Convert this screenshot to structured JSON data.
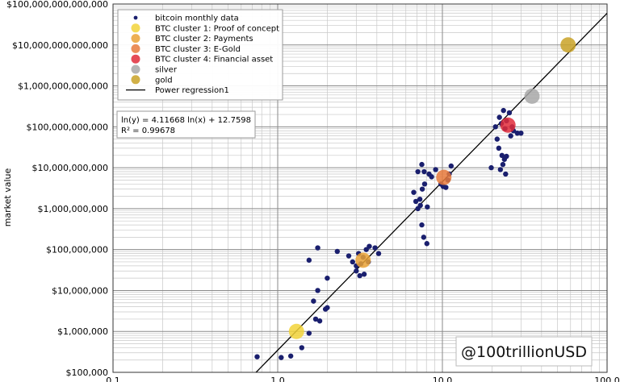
{
  "chart_data": {
    "type": "scatter",
    "title": "",
    "xlabel": "",
    "ylabel": "market value",
    "xscale": "log",
    "yscale": "log",
    "xlim": [
      0.1,
      100.0
    ],
    "ylim": [
      100000,
      100000000000000
    ],
    "grid": true,
    "x_ticks": [
      {
        "value": 0.1,
        "label": "0.1"
      },
      {
        "value": 1.0,
        "label": "1.0"
      },
      {
        "value": 10.0,
        "label": "10.0"
      },
      {
        "value": 100.0,
        "label": "100.0"
      }
    ],
    "y_ticks": [
      {
        "value": 100000,
        "label": "$100,000"
      },
      {
        "value": 1000000,
        "label": "$1,000,000"
      },
      {
        "value": 10000000,
        "label": "$10,000,000"
      },
      {
        "value": 100000000,
        "label": "$100,000,000"
      },
      {
        "value": 1000000000,
        "label": "$1,000,000,000"
      },
      {
        "value": 10000000000,
        "label": "$10,000,000,000"
      },
      {
        "value": 100000000000,
        "label": "$100,000,000,000"
      },
      {
        "value": 1000000000000,
        "label": "$1,000,000,000,000"
      },
      {
        "value": 10000000000000,
        "label": "$10,000,000,000,000"
      },
      {
        "value": 100000000000000,
        "label": "$100,000,000,000,000"
      }
    ],
    "legend_position": "top-left",
    "legend": [
      {
        "label": "bitcoin monthly data",
        "marker": "dot",
        "color": "#1a1f6e"
      },
      {
        "label": "BTC cluster 1: Proof of concept",
        "marker": "circle",
        "color": "#f2d33a"
      },
      {
        "label": "BTC cluster 2: Payments",
        "marker": "circle",
        "color": "#eaa236"
      },
      {
        "label": "BTC cluster 3: E-Gold",
        "marker": "circle",
        "color": "#e87a3c"
      },
      {
        "label": "BTC cluster 4: Financial asset",
        "marker": "circle",
        "color": "#e02b3a"
      },
      {
        "label": "silver",
        "marker": "circle",
        "color": "#a8a8a8"
      },
      {
        "label": "gold",
        "marker": "circle",
        "color": "#c9a227"
      },
      {
        "label": "Power regression1",
        "marker": "line",
        "color": "#000000"
      }
    ],
    "annotation": {
      "line1": "ln(y) = 4.11668 ln(x) + 12.7598",
      "line2": "R² = 0.99678"
    },
    "regression": {
      "slope": 4.11668,
      "intercept": 12.7598
    },
    "series": [
      {
        "name": "bitcoin monthly data",
        "color": "#1a1f6e",
        "points": [
          [
            0.75,
            240000
          ],
          [
            1.05,
            230000
          ],
          [
            1.2,
            250000
          ],
          [
            1.4,
            400000
          ],
          [
            1.55,
            900000
          ],
          [
            1.7,
            2000000
          ],
          [
            1.8,
            1800000
          ],
          [
            1.95,
            3500000
          ],
          [
            2.0,
            3800000
          ],
          [
            1.65,
            5500000
          ],
          [
            1.75,
            10000000
          ],
          [
            2.0,
            20000000
          ],
          [
            1.55,
            55000000
          ],
          [
            1.75,
            110000000
          ],
          [
            2.3,
            90000000
          ],
          [
            2.7,
            70000000
          ],
          [
            2.85,
            50000000
          ],
          [
            3.0,
            40000000
          ],
          [
            3.0,
            30000000
          ],
          [
            3.15,
            23000000
          ],
          [
            3.35,
            25000000
          ],
          [
            3.1,
            80000000
          ],
          [
            3.45,
            100000000
          ],
          [
            3.6,
            120000000
          ],
          [
            3.9,
            110000000
          ],
          [
            4.1,
            80000000
          ],
          [
            3.3,
            65000000
          ],
          [
            3.55,
            50000000
          ],
          [
            3.2,
            45000000
          ],
          [
            6.7,
            2500000000
          ],
          [
            6.9,
            1500000000
          ],
          [
            7.1,
            1000000000
          ],
          [
            7.35,
            1200000000
          ],
          [
            7.5,
            400000000
          ],
          [
            7.7,
            200000000
          ],
          [
            8.05,
            140000000
          ],
          [
            7.1,
            8000000000
          ],
          [
            7.5,
            12000000000
          ],
          [
            7.75,
            8000000000
          ],
          [
            7.55,
            3000000000
          ],
          [
            7.8,
            4000000000
          ],
          [
            8.3,
            7000000000
          ],
          [
            8.6,
            6000000000
          ],
          [
            9.1,
            9000000000
          ],
          [
            9.8,
            4000000000
          ],
          [
            10.1,
            3500000000
          ],
          [
            10.5,
            3300000000
          ],
          [
            10.8,
            5000000000
          ],
          [
            11.0,
            7000000000
          ],
          [
            11.3,
            11000000000
          ],
          [
            8.1,
            1100000000
          ],
          [
            7.3,
            1700000000
          ],
          [
            19.8,
            10000000000
          ],
          [
            21.5,
            50000000000
          ],
          [
            22.0,
            30000000000
          ],
          [
            22.5,
            9000000000
          ],
          [
            23.0,
            20000000000
          ],
          [
            23.3,
            12000000000
          ],
          [
            23.8,
            16000000000
          ],
          [
            24.2,
            7000000000
          ],
          [
            24.5,
            19000000000
          ],
          [
            21.0,
            100000000000
          ],
          [
            22.2,
            170000000000
          ],
          [
            23.5,
            250000000000
          ],
          [
            24.5,
            140000000000
          ],
          [
            25.5,
            220000000000
          ],
          [
            26.5,
            100000000000
          ],
          [
            27.0,
            80000000000
          ],
          [
            28.5,
            70000000000
          ],
          [
            30.0,
            70000000000
          ],
          [
            22.8,
            120000000000
          ],
          [
            24.0,
            90000000000
          ],
          [
            26.0,
            60000000000
          ]
        ]
      },
      {
        "name": "BTC cluster 1: Proof of concept",
        "color": "#f2d33a",
        "points": [
          [
            1.3,
            1000000
          ]
        ]
      },
      {
        "name": "BTC cluster 2: Payments",
        "color": "#eaa236",
        "points": [
          [
            3.3,
            55000000
          ]
        ]
      },
      {
        "name": "BTC cluster 3: E-Gold",
        "color": "#e87a3c",
        "points": [
          [
            10.2,
            5800000000
          ]
        ]
      },
      {
        "name": "BTC cluster 4: Financial asset",
        "color": "#e02b3a",
        "points": [
          [
            25.0,
            110000000000
          ]
        ]
      },
      {
        "name": "silver",
        "color": "#a8a8a8",
        "points": [
          [
            35.0,
            560000000000
          ]
        ]
      },
      {
        "name": "gold",
        "color": "#c9a227",
        "points": [
          [
            58.0,
            10000000000000
          ]
        ]
      }
    ]
  },
  "watermark": "@100trillionUSD"
}
